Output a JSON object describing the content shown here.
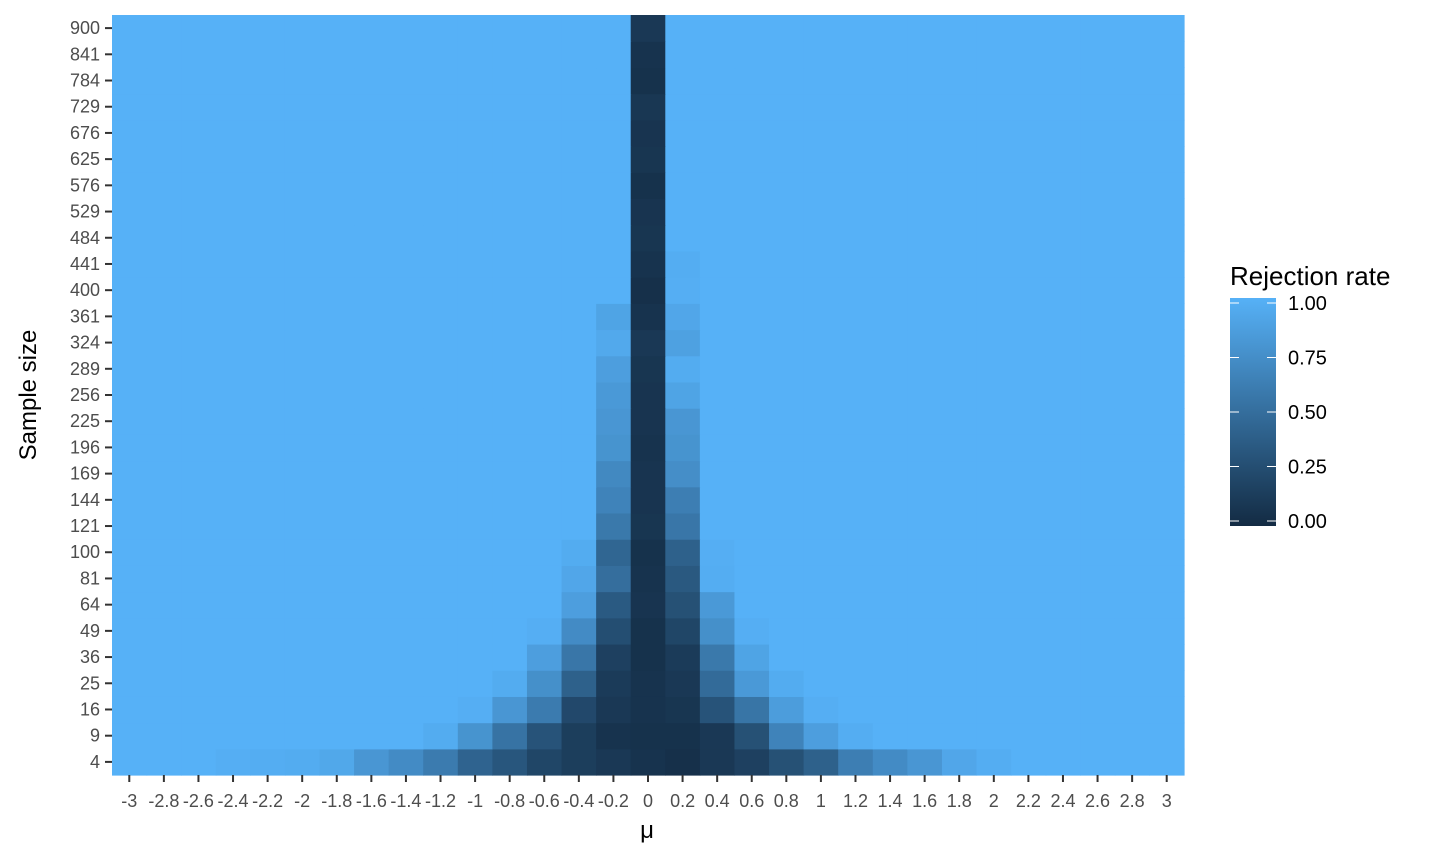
{
  "chart_data": {
    "type": "heatmap",
    "title": "",
    "xlabel": "μ",
    "ylabel": "Sample size",
    "x": [
      "-3",
      "-2.8",
      "-2.6",
      "-2.4",
      "-2.2",
      "-2",
      "-1.8",
      "-1.6",
      "-1.4",
      "-1.2",
      "-1",
      "-0.8",
      "-0.6",
      "-0.4",
      "-0.2",
      "0",
      "0.2",
      "0.4",
      "0.6",
      "0.8",
      "1",
      "1.2",
      "1.4",
      "1.6",
      "1.8",
      "2",
      "2.2",
      "2.4",
      "2.6",
      "2.8",
      "3"
    ],
    "y": [
      "4",
      "9",
      "16",
      "25",
      "36",
      "49",
      "64",
      "81",
      "100",
      "121",
      "144",
      "169",
      "196",
      "225",
      "256",
      "289",
      "324",
      "361",
      "400",
      "441",
      "484",
      "529",
      "576",
      "625",
      "676",
      "729",
      "784",
      "841",
      "900"
    ],
    "default_value": 1.0,
    "cells": [
      {
        "n": "4",
        "values": {
          "-2.4": 0.98,
          "-2.2": 0.97,
          "-2": 0.96,
          "-1.8": 0.93,
          "-1.6": 0.8,
          "-1.4": 0.72,
          "-1.2": 0.6,
          "-1": 0.42,
          "-0.8": 0.32,
          "-0.6": 0.2,
          "-0.4": 0.14,
          "-0.2": 0.1,
          "0": 0.06,
          "0.2": 0.04,
          "0.4": 0.1,
          "0.6": 0.16,
          "0.8": 0.28,
          "1": 0.4,
          "1.2": 0.62,
          "1.4": 0.72,
          "1.6": 0.8,
          "1.8": 0.92,
          "2": 0.97
        }
      },
      {
        "n": "9",
        "values": {
          "-1.2": 0.96,
          "-1": 0.78,
          "-0.8": 0.54,
          "-0.6": 0.3,
          "-0.4": 0.14,
          "-0.2": 0.06,
          "0": 0.05,
          "0.2": 0.05,
          "0.4": 0.1,
          "0.6": 0.28,
          "0.8": 0.66,
          "1": 0.86,
          "1.2": 0.97
        }
      },
      {
        "n": "16",
        "values": {
          "-1": 0.98,
          "-0.8": 0.8,
          "-0.6": 0.6,
          "-0.4": 0.22,
          "-0.2": 0.1,
          "0": 0.06,
          "0.2": 0.08,
          "0.4": 0.3,
          "0.6": 0.55,
          "0.8": 0.85,
          "1": 0.98
        }
      },
      {
        "n": "25",
        "values": {
          "-0.8": 0.96,
          "-0.6": 0.75,
          "-0.4": 0.4,
          "-0.2": 0.12,
          "0": 0.06,
          "0.2": 0.1,
          "0.4": 0.48,
          "0.6": 0.82,
          "0.8": 0.96
        }
      },
      {
        "n": "36",
        "values": {
          "-0.6": 0.86,
          "-0.4": 0.56,
          "-0.2": 0.16,
          "0": 0.05,
          "0.2": 0.12,
          "0.4": 0.58,
          "0.6": 0.9
        }
      },
      {
        "n": "49",
        "values": {
          "-0.6": 0.98,
          "-0.4": 0.72,
          "-0.2": 0.26,
          "0": 0.05,
          "0.2": 0.2,
          "0.4": 0.75,
          "0.6": 0.98
        }
      },
      {
        "n": "64",
        "values": {
          "-0.4": 0.86,
          "-0.2": 0.35,
          "0": 0.07,
          "0.2": 0.28,
          "0.4": 0.82
        }
      },
      {
        "n": "81",
        "values": {
          "-0.4": 0.92,
          "-0.2": 0.5,
          "0": 0.06,
          "0.2": 0.34,
          "0.4": 0.97
        }
      },
      {
        "n": "100",
        "values": {
          "-0.4": 0.96,
          "-0.2": 0.44,
          "0": 0.05,
          "0.2": 0.4,
          "0.4": 0.98
        }
      },
      {
        "n": "121",
        "values": {
          "-0.2": 0.58,
          "0": 0.08,
          "0.2": 0.56
        }
      },
      {
        "n": "144",
        "values": {
          "-0.2": 0.66,
          "0": 0.07,
          "0.2": 0.62
        }
      },
      {
        "n": "169",
        "values": {
          "-0.2": 0.7,
          "0": 0.07,
          "0.2": 0.74
        }
      },
      {
        "n": "196",
        "values": {
          "-0.2": 0.78,
          "0": 0.06,
          "0.2": 0.78
        }
      },
      {
        "n": "225",
        "values": {
          "-0.2": 0.8,
          "0": 0.07,
          "0.2": 0.8
        }
      },
      {
        "n": "256",
        "values": {
          "-0.2": 0.82,
          "0": 0.07,
          "0.2": 0.9
        }
      },
      {
        "n": "289",
        "values": {
          "-0.2": 0.86,
          "0": 0.08,
          "0.2": 0.96
        }
      },
      {
        "n": "324",
        "values": {
          "-0.2": 0.94,
          "0": 0.1,
          "0.2": 0.88
        }
      },
      {
        "n": "361",
        "values": {
          "-0.2": 0.9,
          "0": 0.06,
          "0.2": 0.92
        }
      },
      {
        "n": "400",
        "values": {
          "0": 0.04,
          "0.2": 0.98
        }
      },
      {
        "n": "441",
        "values": {
          "0": 0.06,
          "0.2": 0.97
        }
      },
      {
        "n": "484",
        "values": {
          "0": 0.08
        }
      },
      {
        "n": "529",
        "values": {
          "0": 0.07
        }
      },
      {
        "n": "576",
        "values": {
          "0": 0.05
        }
      },
      {
        "n": "625",
        "values": {
          "0": 0.08
        }
      },
      {
        "n": "676",
        "values": {
          "0": 0.07
        }
      },
      {
        "n": "729",
        "values": {
          "0": 0.09
        }
      },
      {
        "n": "784",
        "values": {
          "0": 0.05
        }
      },
      {
        "n": "841",
        "values": {
          "0": 0.06
        }
      },
      {
        "n": "900",
        "values": {
          "0": 0.1
        }
      }
    ],
    "color_scale": {
      "low": "#132b43",
      "high": "#56b1f7",
      "domain": [
        0,
        1
      ]
    },
    "legend": {
      "title": "Rejection rate",
      "position": "right",
      "breaks": [
        "1.00",
        "0.75",
        "0.50",
        "0.25",
        "0.00"
      ]
    },
    "grid": true
  }
}
